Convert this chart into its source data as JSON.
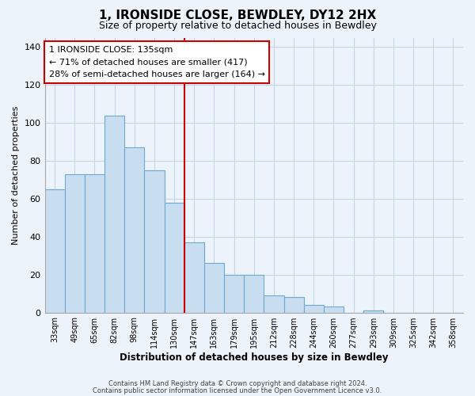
{
  "title": "1, IRONSIDE CLOSE, BEWDLEY, DY12 2HX",
  "subtitle": "Size of property relative to detached houses in Bewdley",
  "xlabel": "Distribution of detached houses by size in Bewdley",
  "ylabel": "Number of detached properties",
  "bar_labels": [
    "33sqm",
    "49sqm",
    "65sqm",
    "82sqm",
    "98sqm",
    "114sqm",
    "130sqm",
    "147sqm",
    "163sqm",
    "179sqm",
    "195sqm",
    "212sqm",
    "228sqm",
    "244sqm",
    "260sqm",
    "277sqm",
    "293sqm",
    "309sqm",
    "325sqm",
    "342sqm",
    "358sqm"
  ],
  "bar_values": [
    65,
    73,
    73,
    104,
    87,
    75,
    58,
    37,
    26,
    20,
    20,
    9,
    8,
    4,
    3,
    0,
    1,
    0,
    0,
    0,
    0
  ],
  "bar_color": "#c9ddf0",
  "bar_edge_color": "#6aaad4",
  "vline_color": "#cc0000",
  "annotation_title": "1 IRONSIDE CLOSE: 135sqm",
  "annotation_line1": "← 71% of detached houses are smaller (417)",
  "annotation_line2": "28% of semi-detached houses are larger (164) →",
  "annotation_box_color": "#ffffff",
  "annotation_box_edge": "#cc0000",
  "ylim": [
    0,
    145
  ],
  "yticks": [
    0,
    20,
    40,
    60,
    80,
    100,
    120,
    140
  ],
  "footer1": "Contains HM Land Registry data © Crown copyright and database right 2024.",
  "footer2": "Contains public sector information licensed under the Open Government Licence v3.0.",
  "background_color": "#edf3fb",
  "plot_bg_color": "#edf3fb",
  "grid_color": "#c5d5e8",
  "spine_color": "#aaaaaa"
}
